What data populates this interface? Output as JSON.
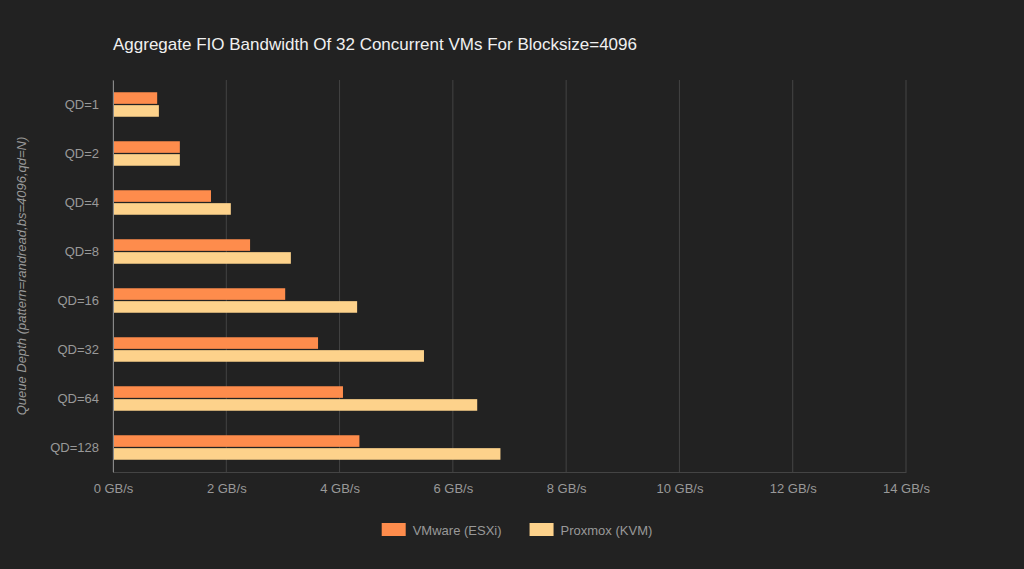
{
  "chart_data": {
    "type": "bar",
    "orientation": "horizontal",
    "title": "Aggregate FIO Bandwidth Of 32 Concurrent VMs For Blocksize=4096",
    "y_label": "Queue Depth (pattern=randread,bs=4096,qd=N)",
    "categories": [
      "QD=1",
      "QD=2",
      "QD=4",
      "QD=8",
      "QD=16",
      "QD=32",
      "QD=64",
      "QD=128"
    ],
    "series": [
      {
        "name": "VMware (ESXi)",
        "color": "#fe8c4c",
        "values": [
          0.78,
          1.18,
          1.73,
          2.42,
          3.04,
          3.62,
          4.06,
          4.35
        ]
      },
      {
        "name": "Proxmox (KVM)",
        "color": "#fdd28b",
        "values": [
          0.81,
          1.18,
          2.08,
          3.14,
          4.31,
          5.49,
          6.43,
          6.84
        ]
      }
    ],
    "xlim": [
      0,
      14
    ],
    "xticks": [
      {
        "value": 0,
        "label": "0 GB/s"
      },
      {
        "value": 2,
        "label": "2 GB/s"
      },
      {
        "value": 4,
        "label": "4 GB/s"
      },
      {
        "value": 6,
        "label": "6 GB/s"
      },
      {
        "value": 8,
        "label": "8 GB/s"
      },
      {
        "value": 10,
        "label": "10 GB/s"
      },
      {
        "value": 12,
        "label": "12 GB/s"
      },
      {
        "value": 14,
        "label": "14 GB/s"
      }
    ],
    "grid": true,
    "legend": "bottom"
  }
}
